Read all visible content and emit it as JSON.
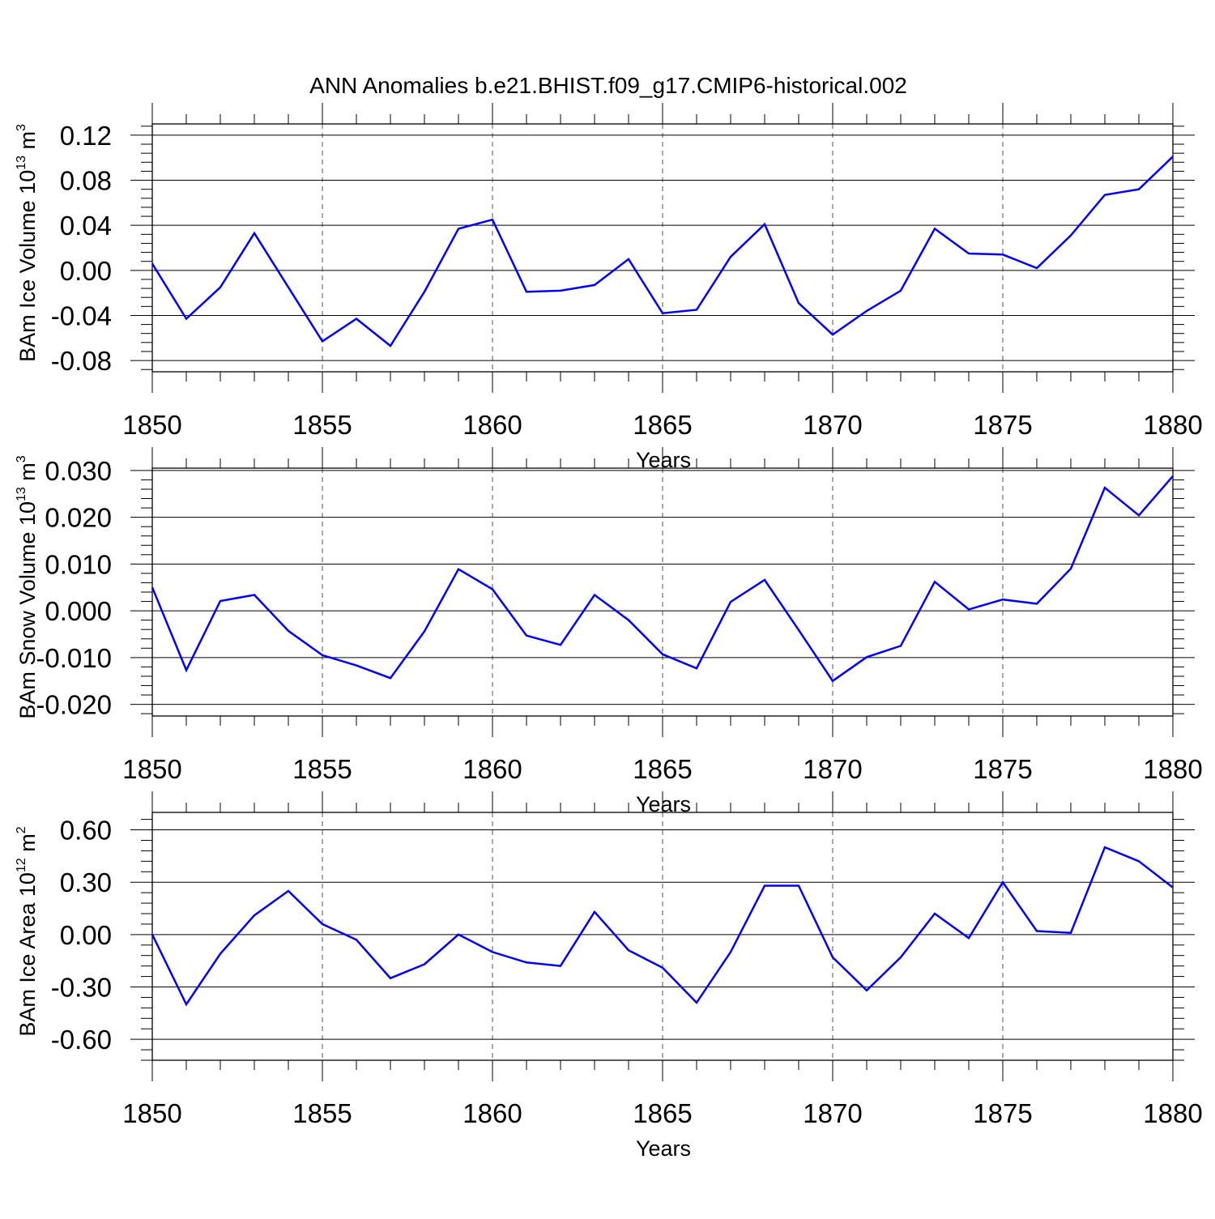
{
  "title": "ANN Anomalies b.e21.BHIST.f09_g17.CMIP6-historical.002",
  "colors": {
    "series": "#0000ff",
    "axis": "#000000",
    "grid": "#555555"
  },
  "chart_data": [
    {
      "type": "line",
      "ylabel": {
        "main": "BAm Ice Volume 10",
        "exp": "13",
        "unit": " m",
        "unit_exp": "3"
      },
      "xlabel": "Years",
      "xlim": [
        1850,
        1880
      ],
      "ylim": [
        -0.09,
        0.13
      ],
      "xticks": [
        1850,
        1855,
        1860,
        1865,
        1870,
        1875,
        1880
      ],
      "yticks": [
        -0.08,
        -0.04,
        0.0,
        0.04,
        0.08,
        0.12
      ],
      "ytick_labels": [
        "-0.08",
        "-0.04",
        "0.00",
        "0.04",
        "0.08",
        "0.12"
      ],
      "grid": "dashed vertical at major x ticks",
      "x": [
        1850,
        1851,
        1852,
        1853,
        1854,
        1855,
        1856,
        1857,
        1858,
        1859,
        1860,
        1861,
        1862,
        1863,
        1864,
        1865,
        1866,
        1867,
        1868,
        1869,
        1870,
        1871,
        1872,
        1873,
        1874,
        1875,
        1876,
        1877,
        1878,
        1879,
        1880
      ],
      "values": [
        0.006,
        -0.043,
        -0.015,
        0.033,
        -0.015,
        -0.063,
        -0.043,
        -0.067,
        -0.019,
        0.037,
        0.045,
        -0.019,
        -0.018,
        -0.013,
        0.01,
        -0.038,
        -0.035,
        0.012,
        0.041,
        -0.029,
        -0.057,
        -0.036,
        -0.018,
        0.037,
        0.015,
        0.014,
        0.002,
        0.031,
        0.067,
        0.072,
        0.101
      ]
    },
    {
      "type": "line",
      "ylabel": {
        "main": "BAm Snow Volume 10",
        "exp": "13",
        "unit": " m",
        "unit_exp": "3"
      },
      "xlabel": "Years",
      "xlim": [
        1850,
        1880
      ],
      "ylim": [
        -0.0225,
        0.0305
      ],
      "xticks": [
        1850,
        1855,
        1860,
        1865,
        1870,
        1875,
        1880
      ],
      "yticks": [
        -0.02,
        -0.01,
        0.0,
        0.01,
        0.02,
        0.03
      ],
      "ytick_labels": [
        "-0.020",
        "-0.010",
        "0.000",
        "0.010",
        "0.020",
        "0.030"
      ],
      "grid": "dashed vertical at major x ticks",
      "x": [
        1850,
        1851,
        1852,
        1853,
        1854,
        1855,
        1856,
        1857,
        1858,
        1859,
        1860,
        1861,
        1862,
        1863,
        1864,
        1865,
        1866,
        1867,
        1868,
        1869,
        1870,
        1871,
        1872,
        1873,
        1874,
        1875,
        1876,
        1877,
        1878,
        1879,
        1880
      ],
      "values": [
        0.005,
        -0.0127,
        0.0021,
        0.0034,
        -0.0043,
        -0.0095,
        -0.0117,
        -0.0144,
        -0.0044,
        0.0089,
        0.0046,
        -0.0053,
        -0.0073,
        0.0034,
        -0.002,
        -0.0093,
        -0.0123,
        0.0019,
        0.0066,
        -0.0041,
        -0.015,
        -0.0099,
        -0.0075,
        0.0062,
        0.0003,
        0.0024,
        0.0015,
        0.009,
        0.0263,
        0.0204,
        0.0288
      ]
    },
    {
      "type": "line",
      "ylabel": {
        "main": "BAm Ice Area 10",
        "exp": "12",
        "unit": " m",
        "unit_exp": "2"
      },
      "xlabel": "Years",
      "xlim": [
        1850,
        1880
      ],
      "ylim": [
        -0.72,
        0.7
      ],
      "xticks": [
        1850,
        1855,
        1860,
        1865,
        1870,
        1875,
        1880
      ],
      "yticks": [
        -0.6,
        -0.3,
        0.0,
        0.3,
        0.6
      ],
      "ytick_labels": [
        "-0.60",
        "-0.30",
        "0.00",
        "0.30",
        "0.60"
      ],
      "grid": "dashed vertical at major x ticks",
      "x": [
        1850,
        1851,
        1852,
        1853,
        1854,
        1855,
        1856,
        1857,
        1858,
        1859,
        1860,
        1861,
        1862,
        1863,
        1864,
        1865,
        1866,
        1867,
        1868,
        1869,
        1870,
        1871,
        1872,
        1873,
        1874,
        1875,
        1876,
        1877,
        1878,
        1879,
        1880
      ],
      "values": [
        0.0,
        -0.4,
        -0.11,
        0.11,
        0.25,
        0.06,
        -0.03,
        -0.25,
        -0.17,
        0.0,
        -0.1,
        -0.16,
        -0.18,
        0.13,
        -0.09,
        -0.19,
        -0.39,
        -0.1,
        0.28,
        0.28,
        -0.13,
        -0.32,
        -0.13,
        0.12,
        -0.02,
        0.3,
        0.02,
        0.01,
        0.5,
        0.42,
        0.27
      ]
    }
  ]
}
